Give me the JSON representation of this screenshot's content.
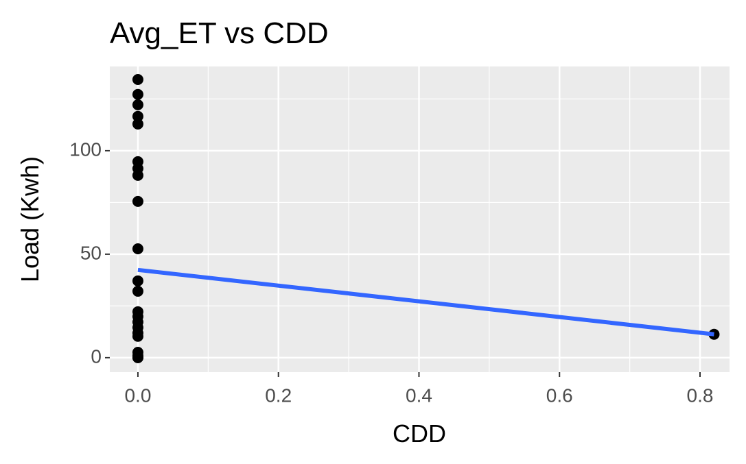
{
  "chart_data": {
    "type": "scatter",
    "title": "Avg_ET vs CDD",
    "x_label": "CDD",
    "y_label": "Load (Kwh)",
    "series": [
      {
        "color": "#000000",
        "x": [
          0,
          0,
          0,
          0,
          0,
          0,
          0,
          0,
          0,
          0,
          0,
          0,
          0,
          0,
          0,
          0,
          0,
          0,
          0,
          0,
          0,
          0,
          0.82
        ],
        "values": [
          134.4,
          127.2,
          122.2,
          116.6,
          112.9,
          94.7,
          91.4,
          88.1,
          75.5,
          52.6,
          37.1,
          32.1,
          22.2,
          19.9,
          17.2,
          14.6,
          11.9,
          10.3,
          2.6,
          1,
          0,
          0,
          11.3
        ]
      }
    ],
    "fit": {
      "color": "#3366ff",
      "x": [
        0,
        0.82
      ],
      "values": [
        42.4,
        11.3
      ]
    },
    "xlim": [
      -0.04,
      0.842
    ],
    "ylim": [
      -7,
      140.7
    ],
    "xticks": [
      {
        "value": 0,
        "label": "0.0"
      },
      0.2,
      0.4,
      0.6,
      0.8
    ],
    "yticks": [
      0,
      50,
      100
    ],
    "xminor": [
      0.1,
      0.3,
      0.5,
      0.7
    ],
    "yminor": [
      25,
      75,
      125
    ],
    "grid": true
  }
}
